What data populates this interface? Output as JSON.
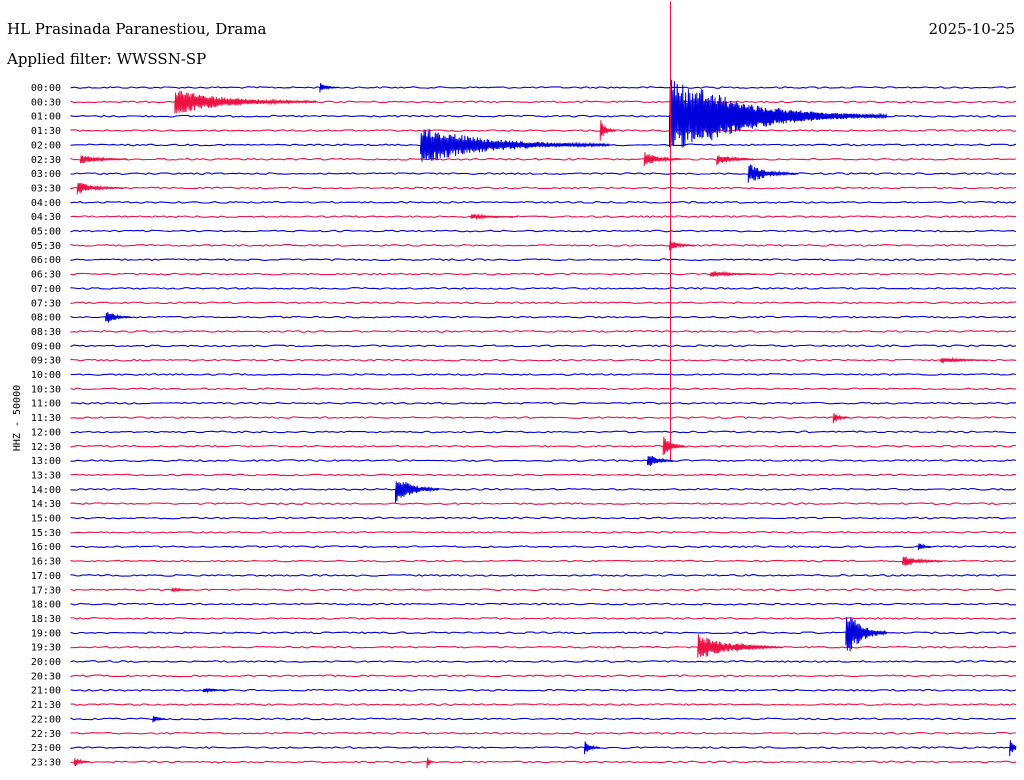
{
  "header": {
    "station": "HL Prasinada Paranestiou, Drama",
    "date": "2025-10-25",
    "filter": "Applied filter: WWSSN-SP"
  },
  "channel_label": "HHZ - 50000",
  "colors": {
    "even_rows": "#0000dd",
    "odd_rows": "#ee1144",
    "background": "#ffffff"
  },
  "chart_data": {
    "type": "line",
    "subtype": "helicorder",
    "ylabel": "HHZ - 50000",
    "row_labels": [
      "00:00",
      "00:30",
      "01:00",
      "01:30",
      "02:00",
      "02:30",
      "03:00",
      "03:30",
      "04:00",
      "04:30",
      "05:00",
      "05:30",
      "06:00",
      "06:30",
      "07:00",
      "07:30",
      "08:00",
      "08:30",
      "09:00",
      "09:30",
      "10:00",
      "10:30",
      "11:00",
      "11:30",
      "12:00",
      "12:30",
      "13:00",
      "13:30",
      "14:00",
      "14:30",
      "15:00",
      "15:30",
      "16:00",
      "16:30",
      "17:00",
      "17:30",
      "18:00",
      "18:30",
      "19:00",
      "19:30",
      "20:00",
      "20:30",
      "21:00",
      "21:30",
      "22:00",
      "22:30",
      "23:00",
      "23:30"
    ],
    "minutes_per_row": 30,
    "row_colors_alternate": [
      "blue",
      "red"
    ],
    "events": [
      {
        "row": 0,
        "minute": 7.9,
        "amp": 0.35,
        "dur": 0.6
      },
      {
        "row": 1,
        "minute": 3.3,
        "amp": 0.95,
        "dur": 4.5
      },
      {
        "row": 2,
        "minute": 19.0,
        "amp": 2.7,
        "dur": 6.0,
        "big": true
      },
      {
        "row": 2,
        "minute": 19.9,
        "amp": 2.1,
        "dur": 6.0
      },
      {
        "row": 3,
        "minute": 16.8,
        "amp": 0.9,
        "dur": 0.5
      },
      {
        "row": 4,
        "minute": 11.1,
        "amp": 1.35,
        "dur": 6.0
      },
      {
        "row": 5,
        "minute": 18.2,
        "amp": 0.55,
        "dur": 1.2
      },
      {
        "row": 5,
        "minute": 20.5,
        "amp": 0.45,
        "dur": 1.2
      },
      {
        "row": 5,
        "minute": 0.3,
        "amp": 0.35,
        "dur": 1.5
      },
      {
        "row": 6,
        "minute": 21.5,
        "amp": 0.75,
        "dur": 1.6
      },
      {
        "row": 7,
        "minute": 0.2,
        "amp": 0.45,
        "dur": 1.5
      },
      {
        "row": 9,
        "minute": 12.7,
        "amp": 0.2,
        "dur": 1.5
      },
      {
        "row": 11,
        "minute": 19.0,
        "amp": 0.4,
        "dur": 0.8
      },
      {
        "row": 13,
        "minute": 20.3,
        "amp": 0.25,
        "dur": 1.5
      },
      {
        "row": 16,
        "minute": 1.1,
        "amp": 0.6,
        "dur": 0.8
      },
      {
        "row": 19,
        "minute": 27.6,
        "amp": 0.25,
        "dur": 1.5
      },
      {
        "row": 23,
        "minute": 24.2,
        "amp": 0.45,
        "dur": 0.5
      },
      {
        "row": 25,
        "minute": 18.8,
        "amp": 0.85,
        "dur": 0.7
      },
      {
        "row": 26,
        "minute": 18.3,
        "amp": 0.6,
        "dur": 0.8
      },
      {
        "row": 28,
        "minute": 10.3,
        "amp": 1.1,
        "dur": 1.4
      },
      {
        "row": 32,
        "minute": 26.9,
        "amp": 0.35,
        "dur": 0.4
      },
      {
        "row": 33,
        "minute": 26.4,
        "amp": 0.5,
        "dur": 1.3
      },
      {
        "row": 35,
        "minute": 3.2,
        "amp": 0.2,
        "dur": 0.6
      },
      {
        "row": 38,
        "minute": 24.6,
        "amp": 1.9,
        "dur": 1.3
      },
      {
        "row": 39,
        "minute": 19.9,
        "amp": 0.95,
        "dur": 2.5
      },
      {
        "row": 39,
        "minute": 21.1,
        "amp": 0.4,
        "dur": 1.5
      },
      {
        "row": 42,
        "minute": 4.2,
        "amp": 0.2,
        "dur": 0.8
      },
      {
        "row": 44,
        "minute": 2.6,
        "amp": 0.4,
        "dur": 0.4
      },
      {
        "row": 46,
        "minute": 16.3,
        "amp": 0.5,
        "dur": 0.5
      },
      {
        "row": 46,
        "minute": 29.8,
        "amp": 0.6,
        "dur": 0.5
      },
      {
        "row": 47,
        "minute": 0.1,
        "amp": 0.4,
        "dur": 0.5
      },
      {
        "row": 47,
        "minute": 11.3,
        "amp": 0.5,
        "dur": 0.2
      }
    ]
  }
}
